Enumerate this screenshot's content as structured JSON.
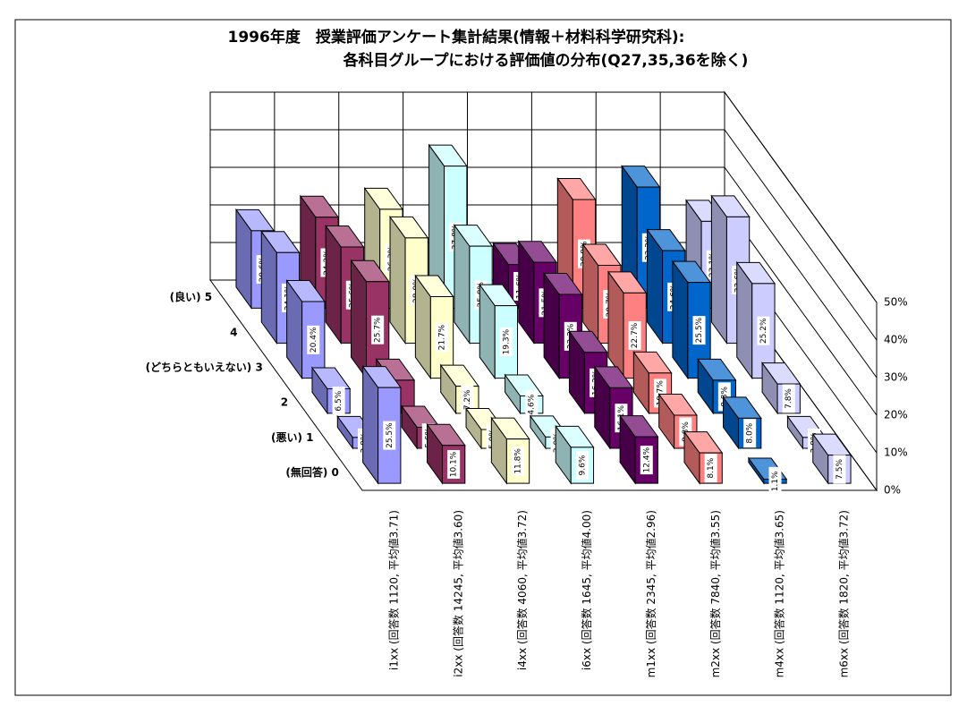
{
  "chart_data": {
    "type": "bar3d",
    "title": "1996年度　授業評価アンケート集計結果(情報＋材料科学研究科):",
    "subtitle": "各科目グループにおける評価値の分布(Q27,35,36を除く)",
    "depth_categories": [
      "(良い) 5",
      "4",
      "(どちらともいえない) 3",
      "2",
      "(悪い) 1",
      "(無回答) 0"
    ],
    "zlim": [
      0,
      50
    ],
    "zticks": [
      {
        "value": 0,
        "label": "0%"
      },
      {
        "value": 10,
        "label": "10%"
      },
      {
        "value": 20,
        "label": "20%"
      },
      {
        "value": 30,
        "label": "30%"
      },
      {
        "value": 40,
        "label": "40%"
      },
      {
        "value": 50,
        "label": "50%"
      }
    ],
    "series": [
      {
        "name": "i1xx (回答数 1120, 平均値3.71)",
        "color": "#9999ff",
        "values": [
          20.6,
          24.1,
          20.4,
          6.5,
          2.9,
          25.5
        ],
        "value_labels": [
          "20.6%",
          "24.1%",
          "20.4%",
          "6.5%",
          "2.9%",
          "25.5%"
        ]
      },
      {
        "name": "i2xx (回答数 14245, 平均値3.60)",
        "color": "#993366",
        "values": [
          24.2,
          25.6,
          25.7,
          8.8,
          5.6,
          10.1
        ],
        "value_labels": [
          "24.2%",
          "25.6%",
          "25.7%",
          null,
          "5.6%",
          "10.1%"
        ]
      },
      {
        "name": "i4xx (回答数 4060, 平均値3.72)",
        "color": "#ffffcc",
        "values": [
          26.3,
          28.0,
          21.7,
          7.2,
          5.0,
          11.8
        ],
        "value_labels": [
          "26.3%",
          "28.0%",
          "21.7%",
          "7.2%",
          "5.0%",
          "11.8%"
        ]
      },
      {
        "name": "i6xx (回答数 1645, 平均値4.00)",
        "color": "#ccffff",
        "values": [
          37.8,
          25.8,
          19.3,
          4.6,
          3.0,
          9.6
        ],
        "value_labels": [
          "37.8%",
          "25.8%",
          "19.3%",
          "4.6%",
          "3.0%",
          "9.6%"
        ]
      },
      {
        "name": "m1xx (回答数 2345, 平均値2.96)",
        "color": "#660066",
        "values": [
          11.6,
          21.5,
          22.3,
          16.2,
          16.1,
          12.4
        ],
        "value_labels": [
          "11.6%",
          "21.5%",
          "22.3%",
          "16.2%",
          "16.1%",
          "12.4%"
        ]
      },
      {
        "name": "m2xx (回答数 7840, 平均値3.55)",
        "color": "#ff8080",
        "values": [
          28.9,
          20.7,
          22.7,
          10.7,
          8.8,
          8.1
        ],
        "value_labels": [
          "28.9%",
          "20.7%",
          "22.7%",
          "10.7%",
          "8.8%",
          "8.1%"
        ]
      },
      {
        "name": "m4xx (回答数 1120, 平均値3.65)",
        "color": "#0066cc",
        "values": [
          32.2,
          24.6,
          25.5,
          8.8,
          8.0,
          1.1
        ],
        "value_labels": [
          "32.2%",
          "24.6%",
          "25.5%",
          "8.8%",
          "8.0%",
          "1.1%"
        ]
      },
      {
        "name": "m6xx (回答数 1820, 平均値3.72)",
        "color": "#ccccff",
        "values": [
          23.1,
          33.6,
          25.2,
          7.8,
          2.9,
          7.5
        ],
        "value_labels": [
          "23.1%",
          "33.6%",
          "25.2%",
          "7.8%",
          "2.9%",
          "7.5%"
        ]
      }
    ]
  }
}
